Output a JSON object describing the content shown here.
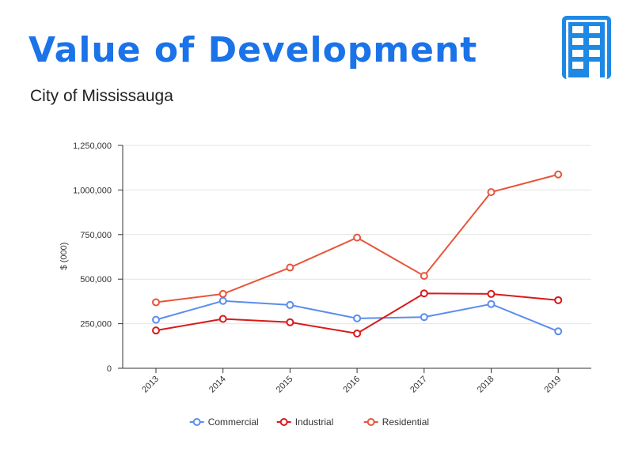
{
  "header": {
    "title": "Value of Development",
    "subtitle": "City of Mississauga",
    "icon": "building-icon",
    "accent_color": "#1a73e8"
  },
  "chart_data": {
    "type": "line",
    "title": "",
    "xlabel": "",
    "ylabel": "$ (000)",
    "categories": [
      "2013",
      "2014",
      "2015",
      "2016",
      "2017",
      "2018",
      "2019"
    ],
    "ylim": [
      0,
      1250000
    ],
    "yticks": [
      0,
      250000,
      500000,
      750000,
      1000000,
      1250000
    ],
    "ytick_labels": [
      "0",
      "250,000",
      "500,000",
      "750,000",
      "1,000,000",
      "1,250,000"
    ],
    "grid": true,
    "legend_position": "bottom",
    "series": [
      {
        "name": "Commercial",
        "color": "#5b8def",
        "values": [
          272000,
          378000,
          355000,
          280000,
          287000,
          360000,
          207000
        ]
      },
      {
        "name": "Industrial",
        "color": "#d91a1a",
        "values": [
          212000,
          277000,
          258000,
          195000,
          420000,
          417000,
          382000
        ]
      },
      {
        "name": "Residential",
        "color": "#e8553a",
        "values": [
          370000,
          417000,
          565000,
          733000,
          518000,
          988000,
          1087000
        ]
      }
    ]
  }
}
